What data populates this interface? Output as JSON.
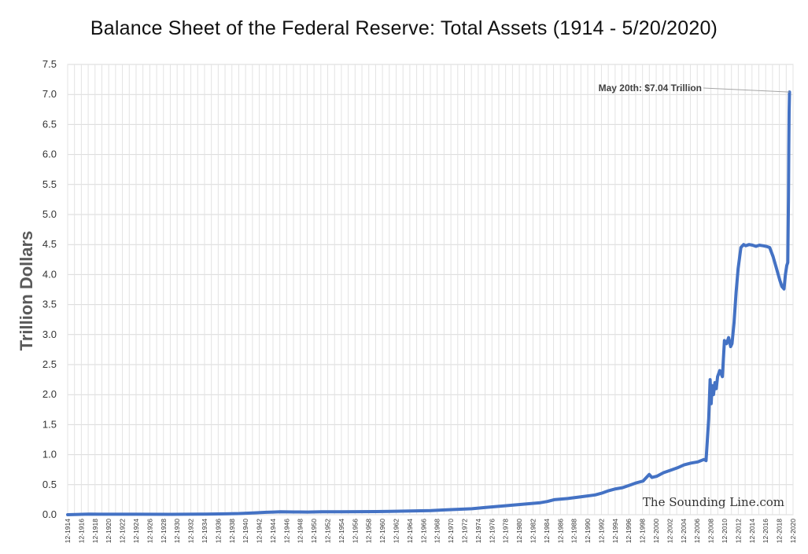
{
  "chart_data": {
    "type": "line",
    "title": "Balance Sheet of the Federal Reserve: Total Assets (1914 - 5/20/2020)",
    "ylabel": "Trillion Dollars",
    "xlabel": "",
    "ylim": [
      0,
      7.5
    ],
    "xlim": [
      1914.92,
      2020.92
    ],
    "yticks": [
      "0.0",
      "0.5",
      "1.0",
      "1.5",
      "2.0",
      "2.5",
      "3.0",
      "3.5",
      "4.0",
      "4.5",
      "5.0",
      "5.5",
      "6.0",
      "6.5",
      "7.0",
      "7.5"
    ],
    "xticks": [
      "12-1914",
      "12-1916",
      "12-1918",
      "12-1920",
      "12-1922",
      "12-1924",
      "12-1926",
      "12-1928",
      "12-1930",
      "12-1932",
      "12-1934",
      "12-1936",
      "12-1938",
      "12-1940",
      "12-1942",
      "12-1944",
      "12-1946",
      "12-1948",
      "12-1950",
      "12-1952",
      "12-1954",
      "12-1956",
      "12-1958",
      "12-1960",
      "12-1962",
      "12-1964",
      "12-1966",
      "12-1968",
      "12-1970",
      "12-1972",
      "12-1974",
      "12-1976",
      "12-1978",
      "12-1980",
      "12-1982",
      "12-1984",
      "12-1986",
      "12-1988",
      "12-1990",
      "12-1992",
      "12-1994",
      "12-1996",
      "12-1998",
      "12-2000",
      "12-2002",
      "12-2004",
      "12-2006",
      "12-2008",
      "12-2010",
      "12-2012",
      "12-2014",
      "12-2016",
      "12-2018",
      "12-2020"
    ],
    "grid": true,
    "series": [
      {
        "name": "",
        "color": "#4472C4",
        "x": [
          1914.92,
          1918,
          1920,
          1925,
          1930,
          1935,
          1938,
          1940,
          1942,
          1944,
          1945,
          1946,
          1948,
          1950,
          1952,
          1955,
          1960,
          1962,
          1965,
          1968,
          1970,
          1972,
          1974,
          1976,
          1978,
          1980,
          1982,
          1984,
          1985,
          1986,
          1987,
          1988,
          1990,
          1992,
          1993,
          1994,
          1995,
          1996,
          1997,
          1998,
          1999,
          1999.9,
          2000.3,
          2001,
          2002,
          2003,
          2004,
          2005,
          2006,
          2007,
          2007.9,
          2008.2,
          2008.6,
          2008.8,
          2008.95,
          2009.1,
          2009.3,
          2009.5,
          2009.7,
          2009.9,
          2010.2,
          2010.6,
          2010.9,
          2011.2,
          2011.5,
          2011.8,
          2012.0,
          2012.3,
          2012.6,
          2012.9,
          2013.3,
          2013.7,
          2014.0,
          2014.5,
          2015,
          2015.5,
          2016,
          2016.5,
          2017,
          2017.5,
          2018,
          2018.5,
          2019,
          2019.3,
          2019.6,
          2019.8,
          2020.0,
          2020.15,
          2020.25,
          2020.3,
          2020.35,
          2020.4
        ],
        "y": [
          0.0,
          0.01,
          0.008,
          0.008,
          0.007,
          0.01,
          0.015,
          0.02,
          0.03,
          0.04,
          0.045,
          0.048,
          0.046,
          0.045,
          0.05,
          0.05,
          0.053,
          0.055,
          0.062,
          0.07,
          0.08,
          0.09,
          0.1,
          0.12,
          0.14,
          0.16,
          0.18,
          0.2,
          0.22,
          0.25,
          0.26,
          0.27,
          0.3,
          0.33,
          0.36,
          0.4,
          0.43,
          0.45,
          0.49,
          0.53,
          0.56,
          0.67,
          0.62,
          0.64,
          0.7,
          0.74,
          0.78,
          0.83,
          0.86,
          0.88,
          0.92,
          0.9,
          1.6,
          2.25,
          1.85,
          2.15,
          2.0,
          2.2,
          2.1,
          2.3,
          2.4,
          2.3,
          2.9,
          2.85,
          2.95,
          2.8,
          2.85,
          3.2,
          3.7,
          4.1,
          4.45,
          4.5,
          4.48,
          4.5,
          4.49,
          4.47,
          4.49,
          4.48,
          4.47,
          4.45,
          4.3,
          4.1,
          3.9,
          3.8,
          3.76,
          4.0,
          4.15,
          4.2,
          5.3,
          6.1,
          6.7,
          7.04
        ]
      }
    ],
    "annotations": [
      {
        "text": "May 20th: $7.04 Trillion",
        "x": 2020.4,
        "y": 7.04
      }
    ]
  },
  "watermark": "The Sounding Line.com"
}
